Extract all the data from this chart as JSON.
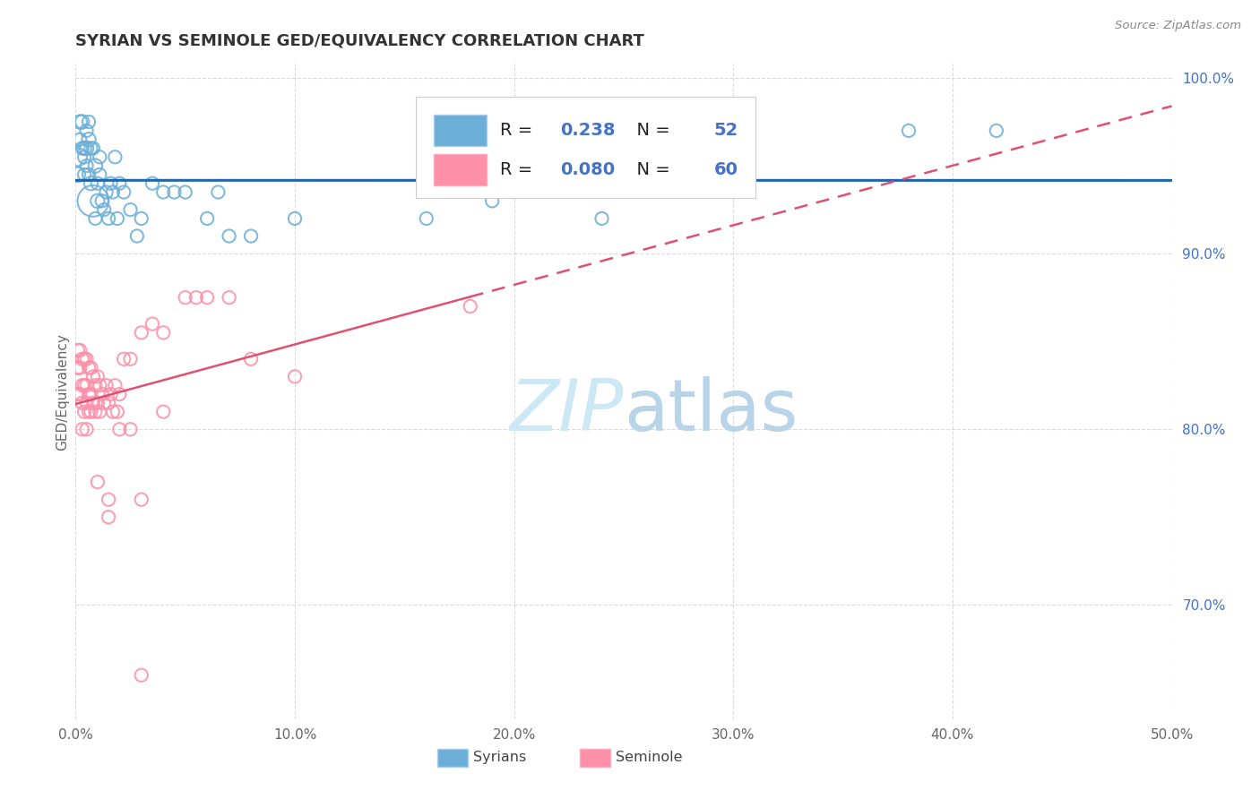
{
  "title": "SYRIAN VS SEMINOLE GED/EQUIVALENCY CORRELATION CHART",
  "source": "Source: ZipAtlas.com",
  "ylabel": "GED/Equivalency",
  "xlim": [
    0.0,
    0.5
  ],
  "ylim": [
    0.635,
    1.008
  ],
  "xticks": [
    0.0,
    0.1,
    0.2,
    0.3,
    0.4,
    0.5
  ],
  "xtick_labels": [
    "0.0%",
    "10.0%",
    "20.0%",
    "30.0%",
    "40.0%",
    "50.0%"
  ],
  "yticks": [
    0.7,
    0.8,
    0.9,
    1.0
  ],
  "ytick_labels": [
    "70.0%",
    "80.0%",
    "90.0%",
    "100.0%"
  ],
  "legend_R": [
    "0.238",
    "0.080"
  ],
  "legend_N": [
    "52",
    "60"
  ],
  "blue_color": "#6baed6",
  "pink_color": "#fc8fa9",
  "blue_line_color": "#2166ac",
  "pink_line_color": "#e05070",
  "watermark_color": "#cde8f5",
  "title_fontsize": 13,
  "axis_tick_fontsize": 11,
  "legend_fontsize": 14,
  "syrians_x": [
    0.001,
    0.001,
    0.002,
    0.002,
    0.003,
    0.003,
    0.004,
    0.004,
    0.004,
    0.005,
    0.005,
    0.005,
    0.006,
    0.006,
    0.006,
    0.007,
    0.007,
    0.008,
    0.008,
    0.009,
    0.009,
    0.01,
    0.01,
    0.011,
    0.011,
    0.012,
    0.013,
    0.014,
    0.015,
    0.016,
    0.017,
    0.018,
    0.019,
    0.02,
    0.022,
    0.025,
    0.028,
    0.03,
    0.035,
    0.04,
    0.045,
    0.05,
    0.06,
    0.065,
    0.07,
    0.08,
    0.1,
    0.16,
    0.19,
    0.24,
    0.38,
    0.42
  ],
  "syrians_y": [
    0.955,
    0.945,
    0.975,
    0.965,
    0.975,
    0.96,
    0.96,
    0.955,
    0.945,
    0.97,
    0.96,
    0.95,
    0.965,
    0.975,
    0.945,
    0.94,
    0.96,
    0.93,
    0.96,
    0.92,
    0.95,
    0.94,
    0.93,
    0.955,
    0.945,
    0.93,
    0.925,
    0.935,
    0.92,
    0.94,
    0.935,
    0.955,
    0.92,
    0.94,
    0.935,
    0.925,
    0.91,
    0.92,
    0.94,
    0.935,
    0.935,
    0.935,
    0.92,
    0.935,
    0.91,
    0.91,
    0.92,
    0.92,
    0.93,
    0.92,
    0.97,
    0.97
  ],
  "syrians_size": [
    60,
    40,
    35,
    30,
    35,
    30,
    35,
    30,
    30,
    30,
    35,
    30,
    35,
    30,
    30,
    35,
    30,
    180,
    30,
    30,
    35,
    30,
    35,
    30,
    30,
    30,
    30,
    30,
    30,
    30,
    30,
    30,
    30,
    30,
    30,
    30,
    30,
    30,
    30,
    30,
    30,
    30,
    30,
    30,
    30,
    30,
    30,
    30,
    30,
    30,
    30,
    30
  ],
  "seminole_x": [
    0.001,
    0.001,
    0.001,
    0.002,
    0.002,
    0.002,
    0.003,
    0.003,
    0.003,
    0.003,
    0.004,
    0.004,
    0.004,
    0.005,
    0.005,
    0.005,
    0.005,
    0.006,
    0.006,
    0.006,
    0.007,
    0.007,
    0.007,
    0.008,
    0.008,
    0.009,
    0.009,
    0.01,
    0.01,
    0.011,
    0.011,
    0.012,
    0.013,
    0.014,
    0.015,
    0.016,
    0.017,
    0.018,
    0.019,
    0.02,
    0.022,
    0.025,
    0.03,
    0.035,
    0.04,
    0.05,
    0.06,
    0.07,
    0.08,
    0.1,
    0.03,
    0.02,
    0.015,
    0.01,
    0.015,
    0.025,
    0.04,
    0.055,
    0.18,
    0.03
  ],
  "seminole_y": [
    0.845,
    0.835,
    0.82,
    0.845,
    0.835,
    0.82,
    0.84,
    0.825,
    0.815,
    0.8,
    0.84,
    0.825,
    0.81,
    0.84,
    0.825,
    0.815,
    0.8,
    0.835,
    0.82,
    0.81,
    0.835,
    0.82,
    0.81,
    0.83,
    0.815,
    0.825,
    0.81,
    0.83,
    0.815,
    0.825,
    0.81,
    0.82,
    0.815,
    0.825,
    0.815,
    0.82,
    0.81,
    0.825,
    0.81,
    0.82,
    0.84,
    0.84,
    0.855,
    0.86,
    0.855,
    0.875,
    0.875,
    0.875,
    0.84,
    0.83,
    0.76,
    0.8,
    0.76,
    0.77,
    0.75,
    0.8,
    0.81,
    0.875,
    0.87,
    0.66
  ],
  "seminole_size": [
    30,
    30,
    30,
    30,
    30,
    30,
    30,
    30,
    30,
    30,
    30,
    30,
    30,
    30,
    30,
    30,
    30,
    30,
    30,
    30,
    30,
    30,
    30,
    30,
    30,
    30,
    30,
    30,
    30,
    30,
    30,
    30,
    30,
    30,
    30,
    30,
    30,
    30,
    30,
    30,
    30,
    30,
    30,
    30,
    30,
    30,
    30,
    30,
    30,
    30,
    30,
    30,
    30,
    30,
    30,
    30,
    30,
    30,
    30,
    30
  ]
}
